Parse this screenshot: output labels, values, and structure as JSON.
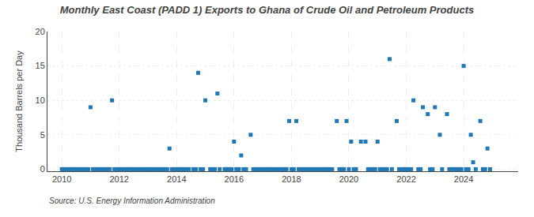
{
  "chart_data": {
    "type": "scatter",
    "title": "Monthly East Coast (PADD 1) Exports to Ghana of Crude Oil and Petroleum Products",
    "y_label": "Thousand Barrels per Day",
    "annotations": [
      "Source: U.S. Energy Information Administration"
    ],
    "marker": "square",
    "grid": true,
    "xlim": [
      2009.5,
      2025.9
    ],
    "ylim": [
      -0.3,
      20
    ],
    "xticks": [
      2010,
      2012,
      2014,
      2016,
      2018,
      2020,
      2022,
      2024
    ],
    "yticks": [
      0,
      5,
      10,
      15,
      20
    ],
    "x": [
      2011.0,
      2011.75,
      2013.75,
      2014.75,
      2015.0,
      2015.42,
      2015.67,
      2016.0,
      2016.25,
      2016.58,
      2017.92,
      2018.17,
      2019.58,
      2019.92,
      2020.08,
      2020.42,
      2020.58,
      2021.0,
      2021.42,
      2021.67,
      2021.92,
      2022.25,
      2022.58,
      2022.75,
      2023.0,
      2023.17,
      2023.42,
      2024.0,
      2024.25,
      2024.58,
      2024.83,
      2010.0,
      2010.08,
      2010.17,
      2010.25,
      2010.33,
      2010.42,
      2010.5,
      2010.58,
      2010.67,
      2010.75,
      2010.83,
      2010.92,
      2011.08,
      2011.17,
      2011.25,
      2011.33,
      2011.42,
      2011.5,
      2011.58,
      2011.67,
      2011.83,
      2011.92,
      2012.0,
      2012.08,
      2012.17,
      2012.25,
      2012.33,
      2012.42,
      2012.5,
      2012.58,
      2012.67,
      2012.75,
      2012.83,
      2012.92,
      2013.0,
      2013.08,
      2013.17,
      2013.25,
      2013.33,
      2013.42,
      2013.5,
      2013.58,
      2013.67,
      2013.83,
      2013.92,
      2014.0,
      2014.08,
      2014.17,
      2014.25,
      2014.33,
      2014.42,
      2014.58,
      2014.67,
      2014.83,
      2014.92,
      2015.17,
      2015.25,
      2015.33,
      2015.5,
      2015.75,
      2015.83,
      2015.92,
      2016.08,
      2016.17,
      2016.33,
      2016.42,
      2016.67,
      2016.75,
      2016.83,
      2016.92,
      2017.0,
      2017.08,
      2017.17,
      2017.25,
      2017.33,
      2017.42,
      2017.5,
      2017.58,
      2017.67,
      2017.75,
      2017.83,
      2018.0,
      2018.08,
      2018.25,
      2018.33,
      2018.42,
      2018.5,
      2018.58,
      2018.67,
      2018.75,
      2018.83,
      2018.92,
      2019.0,
      2019.08,
      2019.17,
      2019.25,
      2019.33,
      2019.42,
      2019.67,
      2019.75,
      2019.83,
      2020.0,
      2020.17,
      2020.25,
      2020.67,
      2020.75,
      2020.83,
      2020.92,
      2021.08,
      2021.17,
      2021.25,
      2021.33,
      2021.5,
      2021.75,
      2021.83,
      2021.92,
      2022.0,
      2022.08,
      2022.17,
      2022.42,
      2022.5,
      2022.83,
      2022.92,
      2023.25,
      2023.5,
      2023.58,
      2023.67,
      2023.75,
      2023.83,
      2023.92,
      2024.08,
      2024.17,
      2024.33,
      2024.42,
      2024.67,
      2024.75,
      2024.92
    ],
    "values": [
      9,
      10,
      3,
      14,
      10,
      11,
      0,
      4,
      2,
      5,
      7,
      7,
      7,
      7,
      4,
      4,
      4,
      4,
      16,
      7,
      0,
      10,
      9,
      8,
      9,
      5,
      8,
      15,
      5,
      7,
      3,
      0,
      0,
      0,
      0,
      0,
      0,
      0,
      0,
      0,
      0,
      0,
      0,
      0,
      0,
      0,
      0,
      0,
      0,
      0,
      0,
      0,
      0,
      0,
      0,
      0,
      0,
      0,
      0,
      0,
      0,
      0,
      0,
      0,
      0,
      0,
      0,
      0,
      0,
      0,
      0,
      0,
      0,
      0,
      0,
      0,
      0,
      0,
      0,
      0,
      0,
      0,
      0,
      0,
      0,
      0,
      0,
      0,
      0,
      0,
      0,
      0,
      0,
      0,
      0,
      0,
      0,
      0,
      0,
      0,
      0,
      0,
      0,
      0,
      0,
      0,
      0,
      0,
      0,
      0,
      0,
      0,
      0,
      0,
      0,
      0,
      0,
      0,
      0,
      0,
      0,
      0,
      0,
      0,
      0,
      0,
      0,
      0,
      0,
      0,
      0,
      0,
      0,
      0,
      0,
      0,
      0,
      0,
      0,
      0,
      0,
      0,
      0,
      0,
      0,
      0,
      0,
      0,
      0,
      0,
      0,
      0,
      0,
      0,
      0,
      0,
      0,
      0,
      0,
      0,
      0,
      0,
      0,
      1,
      0,
      0,
      0,
      0
    ]
  }
}
